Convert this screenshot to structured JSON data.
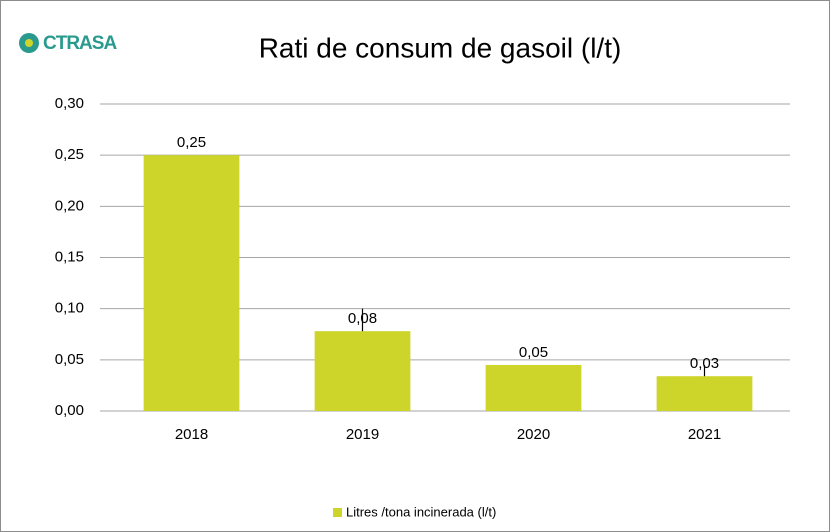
{
  "chart_data": {
    "type": "bar",
    "logo": "CTRASA",
    "title": "Rati de consum de gasoil (l/t)",
    "categories": [
      "2018",
      "2019",
      "2020",
      "2021"
    ],
    "series": [
      {
        "name": "Litres /tona incinerada (l/t)",
        "color": "#cdd52a",
        "values": [
          0.25,
          0.078,
          0.045,
          0.034
        ],
        "value_labels": [
          "0,25",
          "0,08",
          "0,05",
          "0,03"
        ],
        "errors": [
          null,
          0.022,
          null,
          0.011
        ]
      }
    ],
    "ylim": [
      0,
      0.3
    ],
    "yticks": [
      {
        "value": 0,
        "label": "0,00"
      },
      {
        "value": 0.05,
        "label": "0,05"
      },
      {
        "value": 0.1,
        "label": "0,10"
      },
      {
        "value": 0.15,
        "label": "0,15"
      },
      {
        "value": 0.2,
        "label": "0,20"
      },
      {
        "value": 0.25,
        "label": "0,25"
      },
      {
        "value": 0.3,
        "label": "0,30"
      }
    ],
    "grid": true,
    "legend": "bottom"
  }
}
